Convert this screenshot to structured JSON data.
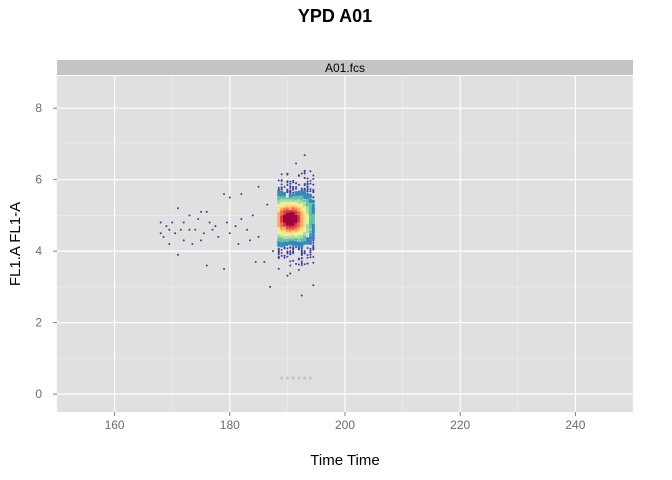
{
  "chart_data": {
    "type": "scatter",
    "title": "YPD A01",
    "panel_label": "A01.fcs",
    "xlabel": "Time Time",
    "ylabel": "FL1.A FL1-A",
    "xlim": [
      150,
      250
    ],
    "ylim": [
      -0.5,
      8.9
    ],
    "x_ticks": [
      160,
      180,
      200,
      220,
      240
    ],
    "y_ticks": [
      0,
      2,
      4,
      6,
      8
    ],
    "grid": true,
    "legend": "none",
    "density_colors": [
      "#3f3d99",
      "#3288bd",
      "#66c2a5",
      "#abdda4",
      "#e6f598",
      "#fee08b",
      "#fdae61",
      "#f46d43",
      "#d53e4f",
      "#9e0142"
    ],
    "sparse_points": [
      {
        "x": 168,
        "y": 4.8
      },
      {
        "x": 168,
        "y": 4.5
      },
      {
        "x": 168.5,
        "y": 4.4
      },
      {
        "x": 169,
        "y": 4.7
      },
      {
        "x": 169.5,
        "y": 4.6
      },
      {
        "x": 169.5,
        "y": 4.2
      },
      {
        "x": 170,
        "y": 4.8
      },
      {
        "x": 170.5,
        "y": 4.5
      },
      {
        "x": 171,
        "y": 5.2
      },
      {
        "x": 171,
        "y": 3.9
      },
      {
        "x": 171.5,
        "y": 4.6
      },
      {
        "x": 172,
        "y": 4.8
      },
      {
        "x": 172,
        "y": 4.3
      },
      {
        "x": 173,
        "y": 4.6
      },
      {
        "x": 173,
        "y": 5.0
      },
      {
        "x": 173.5,
        "y": 4.2
      },
      {
        "x": 174,
        "y": 4.6
      },
      {
        "x": 174.5,
        "y": 4.9
      },
      {
        "x": 175,
        "y": 5.1
      },
      {
        "x": 175,
        "y": 4.3
      },
      {
        "x": 175.5,
        "y": 4.5
      },
      {
        "x": 176,
        "y": 5.1
      },
      {
        "x": 176,
        "y": 3.6
      },
      {
        "x": 176.5,
        "y": 4.8
      },
      {
        "x": 177,
        "y": 4.6
      },
      {
        "x": 177.5,
        "y": 4.7
      },
      {
        "x": 178,
        "y": 4.4
      },
      {
        "x": 179,
        "y": 5.6
      },
      {
        "x": 179,
        "y": 3.5
      },
      {
        "x": 179.5,
        "y": 4.8
      },
      {
        "x": 180,
        "y": 5.5
      },
      {
        "x": 180,
        "y": 4.5
      },
      {
        "x": 181,
        "y": 4.7
      },
      {
        "x": 181.5,
        "y": 4.2
      },
      {
        "x": 182,
        "y": 5.6
      },
      {
        "x": 182,
        "y": 4.9
      },
      {
        "x": 183,
        "y": 4.6
      },
      {
        "x": 183.5,
        "y": 4.3
      },
      {
        "x": 184,
        "y": 5.0
      },
      {
        "x": 184.5,
        "y": 3.7
      },
      {
        "x": 185,
        "y": 5.8
      },
      {
        "x": 185,
        "y": 4.4
      },
      {
        "x": 186,
        "y": 3.7
      },
      {
        "x": 186.5,
        "y": 5.3
      },
      {
        "x": 187,
        "y": 3.0
      },
      {
        "x": 187.5,
        "y": 4.0
      }
    ],
    "dense_region": {
      "x_range": [
        188.5,
        194.5
      ],
      "y_center": 4.9,
      "y_min": 2.7,
      "y_max": 7.2,
      "peak": {
        "x": 190.5,
        "y": 4.9
      }
    },
    "low_points": {
      "x_range": [
        189,
        194
      ],
      "y": 0.45
    }
  }
}
